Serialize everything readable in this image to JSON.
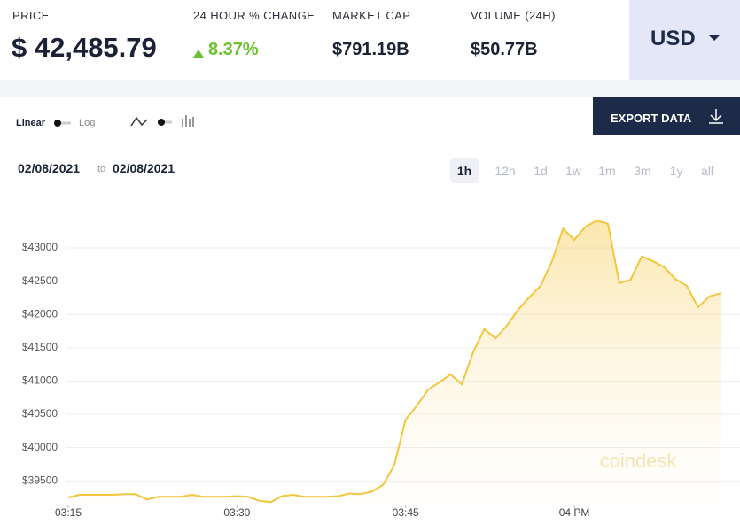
{
  "header": {
    "stats": [
      {
        "label": "PRICE",
        "value": "$ 42,485.79"
      },
      {
        "label": "24 HOUR % CHANGE",
        "value": "8.37%"
      },
      {
        "label": "MARKET CAP",
        "value": "$791.19B"
      },
      {
        "label": "VOLUME (24H)",
        "value": "$50.77B"
      }
    ],
    "currency": "USD"
  },
  "controls": {
    "scale": [
      "Linear",
      "Log"
    ],
    "export": "EXPORT DATA",
    "date_from": "02/08/2021",
    "date_sep": "to",
    "date_to": "02/08/2021",
    "ranges": [
      "1h",
      "12h",
      "1d",
      "1w",
      "1m",
      "3m",
      "1y",
      "all"
    ],
    "selected_range": "1h"
  },
  "chart_data": {
    "type": "line",
    "watermark": "coindesk",
    "color": "#f2c63e",
    "x": [
      "03:15",
      "03:16",
      "03:17",
      "03:18",
      "03:19",
      "03:20",
      "03:21",
      "03:22",
      "03:23",
      "03:24",
      "03:25",
      "03:26",
      "03:27",
      "03:28",
      "03:29",
      "03:30",
      "03:31",
      "03:32",
      "03:33",
      "03:34",
      "03:35",
      "03:36",
      "03:37",
      "03:38",
      "03:39",
      "03:40",
      "03:41",
      "03:42",
      "03:43",
      "03:44",
      "03:45",
      "03:46",
      "03:47",
      "03:48",
      "03:49",
      "03:50",
      "03:51",
      "03:52",
      "03:53",
      "03:54",
      "03:55",
      "03:56",
      "03:57",
      "03:58",
      "03:59",
      "04:00",
      "04:01",
      "04:02",
      "04:03",
      "04:04",
      "04:05",
      "04:06",
      "04:07",
      "04:08",
      "04:09",
      "04:10",
      "04:11",
      "04:12",
      "04:13"
    ],
    "values": [
      39250,
      39290,
      39290,
      39290,
      39290,
      39300,
      39300,
      39220,
      39260,
      39260,
      39260,
      39290,
      39260,
      39260,
      39260,
      39270,
      39260,
      39200,
      39180,
      39270,
      39290,
      39260,
      39260,
      39260,
      39270,
      39310,
      39300,
      39340,
      39440,
      39740,
      40420,
      40630,
      40870,
      40980,
      41100,
      40950,
      41430,
      41780,
      41640,
      41830,
      42070,
      42260,
      42430,
      42790,
      43290,
      43120,
      43320,
      43410,
      43360,
      42470,
      42520,
      42870,
      42800,
      42710,
      42530,
      42430,
      42110,
      42270,
      42320
    ],
    "xlim": [
      "03:15",
      "04:13"
    ],
    "xticks": [
      "03:15",
      "03:30",
      "03:45",
      {
        "value": "04:00",
        "label": "04 PM"
      }
    ],
    "ylim": [
      39100,
      43600
    ],
    "yticks": [
      {
        "value": 39500,
        "label": "$39500"
      },
      {
        "value": 40000,
        "label": "$40000"
      },
      {
        "value": 40500,
        "label": "$40500"
      },
      {
        "value": 41000,
        "label": "$41000"
      },
      {
        "value": 41500,
        "label": "$41500"
      },
      {
        "value": 42000,
        "label": "$42000"
      },
      {
        "value": 42500,
        "label": "$42500"
      },
      {
        "value": 43000,
        "label": "$43000"
      }
    ],
    "grid": true
  }
}
